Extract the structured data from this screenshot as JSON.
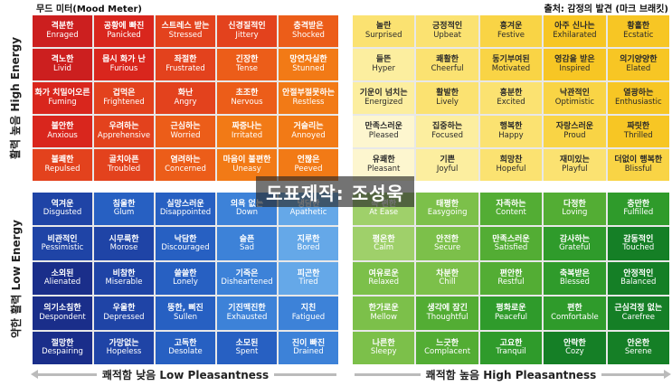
{
  "header": {
    "title": "무드 미터(Mood Meter)",
    "source": "출처: 감정의 발견 (마크 브래킷)"
  },
  "axes": {
    "y_top": "활력 높음 High Energy",
    "y_bottom": "약한 활력 Low Energy",
    "x_left": "쾌적함 낮음 Low Pleasantness",
    "x_right": "쾌적함 높음 High Pleasantness"
  },
  "watermark": "도표제작: 조성욱",
  "colors": {
    "red": [
      "#cc1f1f",
      "#d9261d",
      "#e3421d",
      "#ec5d19",
      "#f27a16"
    ],
    "yellow": [
      "#fdf6cf",
      "#fcee9f",
      "#fbe271",
      "#f9d445",
      "#f7c624"
    ],
    "blue": [
      "#1a2e8a",
      "#1f44a6",
      "#2760c2",
      "#3d82d8",
      "#65a8e8"
    ],
    "green": [
      "#9fd06a",
      "#7cc04a",
      "#53ad34",
      "#2f9b2b",
      "#157f26"
    ]
  },
  "quadrants": {
    "red": [
      [
        [
          "격분한",
          "Enraged"
        ],
        [
          "공황에 빠진",
          "Panicked"
        ],
        [
          "스트레스 받는",
          "Stressed"
        ],
        [
          "신경질적인",
          "Jittery"
        ],
        [
          "충격받은",
          "Shocked"
        ]
      ],
      [
        [
          "격노한",
          "Livid"
        ],
        [
          "몹시 화가 난",
          "Furious"
        ],
        [
          "좌절한",
          "Frustrated"
        ],
        [
          "긴장한",
          "Tense"
        ],
        [
          "망연자실한",
          "Stunned"
        ]
      ],
      [
        [
          "화가 치밀어오른",
          "Fuming"
        ],
        [
          "겁먹은",
          "Frightened"
        ],
        [
          "화난",
          "Angry"
        ],
        [
          "초조한",
          "Nervous"
        ],
        [
          "안절부절못하는",
          "Restless"
        ]
      ],
      [
        [
          "불안한",
          "Anxious"
        ],
        [
          "우려하는",
          "Apprehensive"
        ],
        [
          "근심하는",
          "Worried"
        ],
        [
          "짜증나는",
          "Irritated"
        ],
        [
          "거슬리는",
          "Annoyed"
        ]
      ],
      [
        [
          "불쾌한",
          "Repulsed"
        ],
        [
          "골치아픈",
          "Troubled"
        ],
        [
          "염려하는",
          "Concerned"
        ],
        [
          "마음이 불편한",
          "Uneasy"
        ],
        [
          "언짢은",
          "Peeved"
        ]
      ]
    ],
    "yellow": [
      [
        [
          "놀란",
          "Surprised"
        ],
        [
          "긍정적인",
          "Upbeat"
        ],
        [
          "흥겨운",
          "Festive"
        ],
        [
          "아주 신나는",
          "Exhilarated"
        ],
        [
          "황홀한",
          "Ecstatic"
        ]
      ],
      [
        [
          "들뜬",
          "Hyper"
        ],
        [
          "쾌활한",
          "Cheerful"
        ],
        [
          "동기부여된",
          "Motivated"
        ],
        [
          "영감을 받은",
          "Inspired"
        ],
        [
          "의기양양한",
          "Elated"
        ]
      ],
      [
        [
          "기운이 넘치는",
          "Energized"
        ],
        [
          "활발한",
          "Lively"
        ],
        [
          "흥분한",
          "Excited"
        ],
        [
          "낙관적인",
          "Optimistic"
        ],
        [
          "열광하는",
          "Enthusiastic"
        ]
      ],
      [
        [
          "만족스러운",
          "Pleased"
        ],
        [
          "집중하는",
          "Focused"
        ],
        [
          "행복한",
          "Happy"
        ],
        [
          "자랑스러운",
          "Proud"
        ],
        [
          "짜릿한",
          "Thrilled"
        ]
      ],
      [
        [
          "유쾌한",
          "Pleasant"
        ],
        [
          "기쁜",
          "Joyful"
        ],
        [
          "희망찬",
          "Hopeful"
        ],
        [
          "재미있는",
          "Playful"
        ],
        [
          "더없이 행복한",
          "Blissful"
        ]
      ]
    ],
    "blue": [
      [
        [
          "역겨운",
          "Disgusted"
        ],
        [
          "침울한",
          "Glum"
        ],
        [
          "실망스러운",
          "Disappointed"
        ],
        [
          "의욕 없는",
          "Down"
        ],
        [
          "냉담한",
          "Apathetic"
        ]
      ],
      [
        [
          "비관적인",
          "Pessimistic"
        ],
        [
          "시무룩한",
          "Morose"
        ],
        [
          "낙담한",
          "Discouraged"
        ],
        [
          "슬픈",
          "Sad"
        ],
        [
          "지루한",
          "Bored"
        ]
      ],
      [
        [
          "소외된",
          "Alienated"
        ],
        [
          "비참한",
          "Miserable"
        ],
        [
          "쓸쓸한",
          "Lonely"
        ],
        [
          "기죽은",
          "Disheartened"
        ],
        [
          "피곤한",
          "Tired"
        ]
      ],
      [
        [
          "의기소침한",
          "Despondent"
        ],
        [
          "우울한",
          "Depressed"
        ],
        [
          "뚱한, 삐진",
          "Sullen"
        ],
        [
          "기진맥진한",
          "Exhausted"
        ],
        [
          "지친",
          "Fatigued"
        ]
      ],
      [
        [
          "절망한",
          "Despairing"
        ],
        [
          "가망없는",
          "Hopeless"
        ],
        [
          "고독한",
          "Desolate"
        ],
        [
          "소모된",
          "Spent"
        ],
        [
          "진이 빠진",
          "Drained"
        ]
      ]
    ],
    "green": [
      [
        [
          "속 편한",
          "At Ease"
        ],
        [
          "태평한",
          "Easygoing"
        ],
        [
          "자족하는",
          "Content"
        ],
        [
          "다정한",
          "Loving"
        ],
        [
          "충만한",
          "Fulfilled"
        ]
      ],
      [
        [
          "평온한",
          "Calm"
        ],
        [
          "안전한",
          "Secure"
        ],
        [
          "만족스러운",
          "Satisfied"
        ],
        [
          "감사하는",
          "Grateful"
        ],
        [
          "감동적인",
          "Touched"
        ]
      ],
      [
        [
          "여유로운",
          "Relaxed"
        ],
        [
          "차분한",
          "Chill"
        ],
        [
          "편안한",
          "Restful"
        ],
        [
          "축복받은",
          "Blessed"
        ],
        [
          "안정적인",
          "Balanced"
        ]
      ],
      [
        [
          "한가로운",
          "Mellow"
        ],
        [
          "생각에 잠긴",
          "Thoughtful"
        ],
        [
          "평화로운",
          "Peaceful"
        ],
        [
          "편한",
          "Comfortable"
        ],
        [
          "근심걱정 없는",
          "Carefree"
        ]
      ],
      [
        [
          "나른한",
          "Sleepy"
        ],
        [
          "느긋한",
          "Complacent"
        ],
        [
          "고요한",
          "Tranquil"
        ],
        [
          "안락한",
          "Cozy"
        ],
        [
          "안온한",
          "Serene"
        ]
      ]
    ]
  }
}
